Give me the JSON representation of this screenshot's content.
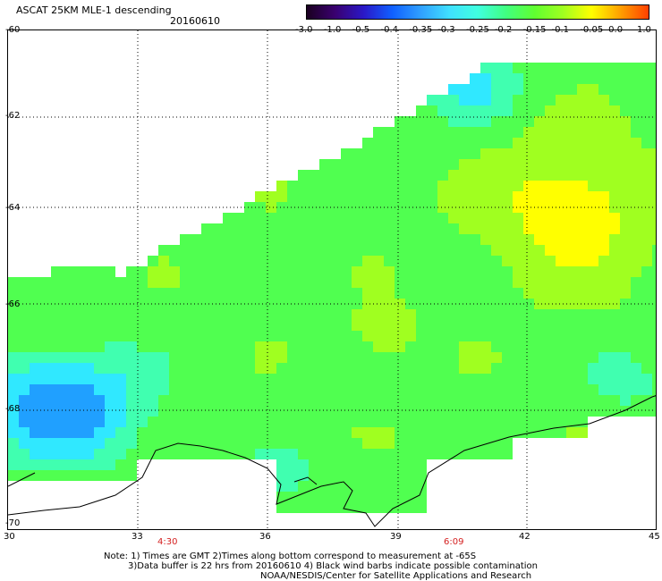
{
  "header": {
    "title": "ASCAT 25KM MLE-1 descending",
    "date": "20160610"
  },
  "colorbar": {
    "labels": [
      "-3.0",
      "-1.0",
      "-0.5",
      "-0.4",
      "-0.35",
      "-0.3",
      "-0.25",
      "-0.2",
      "-0.15",
      "-0.1",
      "-0.05",
      "0.0",
      "1.0"
    ],
    "colors": [
      "#1a0020",
      "#3a0070",
      "#2a18c8",
      "#1060ff",
      "#30a0ff",
      "#40e0ff",
      "#40ffe0",
      "#40ff80",
      "#60ff30",
      "#a0ff20",
      "#ffff00",
      "#ffa000",
      "#ff4000"
    ]
  },
  "axes": {
    "lat_labels": [
      "-60",
      "-62",
      "-64",
      "-66",
      "-68",
      "-70"
    ],
    "lon_labels": [
      "30",
      "33",
      "36",
      "39",
      "42",
      "45"
    ]
  },
  "times": [
    "4:30",
    "6:09"
  ],
  "notes": {
    "line1": "Note: 1) Times are GMT 2)Times along bottom correspond to measurement at -65S",
    "line2": "3)Data buffer is 22 hrs from 20160610 4) Black wind barbs indicate possible contamination",
    "line3": "NOAA/NESDIS/Center for Satellite Applications and Research"
  }
}
